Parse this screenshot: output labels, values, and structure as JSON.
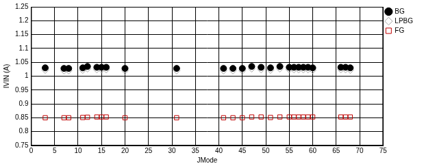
{
  "chart_data": {
    "type": "scatter",
    "x_label": "JMode",
    "y_label": "IVIN (A)",
    "x": [
      3,
      7,
      8,
      11,
      12,
      14,
      15,
      16,
      20,
      31,
      41,
      43,
      45,
      47,
      49,
      51,
      53,
      55,
      56,
      57,
      58,
      59,
      60,
      66,
      67,
      68
    ],
    "series": [
      {
        "name": "BG",
        "color": "#000000",
        "marker": "circle",
        "values": [
          1.03,
          1.028,
          1.028,
          1.03,
          1.035,
          1.032,
          1.032,
          1.032,
          1.028,
          1.028,
          1.028,
          1.028,
          1.028,
          1.035,
          1.032,
          1.03,
          1.035,
          1.032,
          1.032,
          1.032,
          1.032,
          1.032,
          1.03,
          1.032,
          1.032,
          1.03
        ]
      },
      {
        "name": "FG",
        "color": "#c00000",
        "marker": "square-open",
        "values": [
          0.85,
          0.85,
          0.85,
          0.851,
          0.852,
          0.853,
          0.853,
          0.853,
          0.85,
          0.85,
          0.85,
          0.85,
          0.85,
          0.853,
          0.853,
          0.851,
          0.853,
          0.853,
          0.853,
          0.853,
          0.853,
          0.853,
          0.853,
          0.853,
          0.853,
          0.853
        ]
      },
      {
        "name": "LPBG",
        "color": "#a6a6a6",
        "marker": "diamond-open",
        "values": [
          1.022,
          1.02,
          1.02,
          1.022,
          1.027,
          1.024,
          1.024,
          1.024,
          1.02,
          1.02,
          1.02,
          1.02,
          1.02,
          1.027,
          1.024,
          1.022,
          1.027,
          1.024,
          1.024,
          1.024,
          1.024,
          1.024,
          1.022,
          1.024,
          1.024,
          1.022
        ]
      }
    ],
    "xlim": [
      0,
      75
    ],
    "xticks": [
      0,
      5,
      10,
      15,
      20,
      25,
      30,
      35,
      40,
      45,
      50,
      55,
      60,
      65,
      70,
      75
    ],
    "ylim": [
      0.75,
      1.25
    ],
    "yticks": [
      0.75,
      0.8,
      0.85,
      0.9,
      0.95,
      1,
      1.05,
      1.1,
      1.15,
      1.2,
      1.25
    ],
    "grid": true,
    "legend": "upper right"
  }
}
